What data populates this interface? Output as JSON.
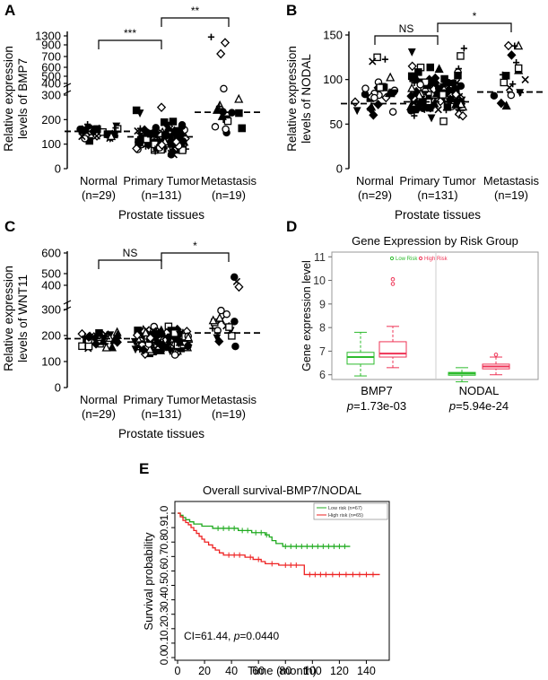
{
  "chart_data": [
    {
      "panel_label": "A",
      "type": "scatter",
      "ylabel_lines": [
        "Relative expression",
        "levels of BMP7"
      ],
      "xlabel": "Prostate tissues",
      "groups": [
        {
          "name": "Normal",
          "n": "(n=29)"
        },
        {
          "name": "Primary Tumor",
          "n": "(n=131)"
        },
        {
          "name": "Metastasis",
          "n": "(n=19)"
        }
      ],
      "y_ticks": [
        "0",
        "100",
        "200",
        "300",
        "400",
        "500",
        "600",
        "700",
        "900",
        "1300"
      ],
      "ylim": [
        0,
        1300
      ],
      "y_break": [
        300,
        400
      ],
      "means": [
        152,
        130,
        230
      ],
      "point_count": [
        29,
        131,
        19
      ],
      "point_range": [
        [
          95,
          200
        ],
        [
          40,
          250
        ],
        [
          60,
          1250
        ]
      ],
      "significance": [
        {
          "from": 0,
          "to": 1,
          "label": "***"
        },
        {
          "from": 1,
          "to": 2,
          "label": "**"
        }
      ]
    },
    {
      "panel_label": "B",
      "type": "scatter",
      "ylabel_lines": [
        "Relative expression",
        "levels of NODAL"
      ],
      "xlabel": "Prostate tissues",
      "groups": [
        {
          "name": "Normal",
          "n": "(n=29)"
        },
        {
          "name": "Primary Tumor",
          "n": "(n=131)"
        },
        {
          "name": "Metastasis",
          "n": "(n=19)"
        }
      ],
      "y_ticks": [
        "0",
        "50",
        "100",
        "150"
      ],
      "ylim": [
        0,
        150
      ],
      "means": [
        73,
        75,
        86
      ],
      "point_count": [
        29,
        131,
        19
      ],
      "point_range": [
        [
          48,
          125
        ],
        [
          45,
          135
        ],
        [
          48,
          138
        ]
      ],
      "significance": [
        {
          "from": 0,
          "to": 1,
          "label": "NS"
        },
        {
          "from": 1,
          "to": 2,
          "label": "*"
        }
      ]
    },
    {
      "panel_label": "C",
      "type": "scatter",
      "ylabel_lines": [
        "Relative expression",
        "levels of WNT11"
      ],
      "xlabel": "Prostate tissues",
      "groups": [
        {
          "name": "Normal",
          "n": "(n=29)"
        },
        {
          "name": "Primary Tumor",
          "n": "(n=131)"
        },
        {
          "name": "Metastasis",
          "n": "(n=19)"
        }
      ],
      "y_ticks": [
        "0",
        "100",
        "200",
        "300",
        "400",
        "500",
        "600"
      ],
      "ylim": [
        0,
        600
      ],
      "y_break": [
        300,
        340
      ],
      "means": [
        188,
        175,
        210
      ],
      "point_count": [
        29,
        131,
        19
      ],
      "point_range": [
        [
          130,
          240
        ],
        [
          110,
          250
        ],
        [
          140,
          470
        ]
      ],
      "significance": [
        {
          "from": 0,
          "to": 1,
          "label": "NS"
        },
        {
          "from": 1,
          "to": 2,
          "label": "*"
        }
      ]
    },
    {
      "panel_label": "D",
      "type": "box",
      "title": "Gene Expression by Risk Group",
      "ylabel": "Gene expression level",
      "y_ticks": [
        "6",
        "7",
        "8",
        "9",
        "10",
        "11"
      ],
      "ylim": [
        5.8,
        11.2
      ],
      "legend": [
        {
          "name": "Low Risk",
          "color": "#2dbb2d"
        },
        {
          "name": "High Risk",
          "color": "#ee3355"
        }
      ],
      "genes": [
        {
          "name": "BMP7",
          "pvalue": "=1.73e-03",
          "p_symbol": "p",
          "low": {
            "min": 5.95,
            "q1": 6.45,
            "median": 6.75,
            "q3": 6.95,
            "max": 7.8,
            "outliers": []
          },
          "high": {
            "min": 6.3,
            "q1": 6.75,
            "median": 6.9,
            "q3": 7.4,
            "max": 8.05,
            "outliers": [
              9.85,
              10.05
            ]
          }
        },
        {
          "name": "NODAL",
          "pvalue": "=5.94e-24",
          "p_symbol": "p",
          "low": {
            "min": 5.7,
            "q1": 5.98,
            "median": 6.05,
            "q3": 6.1,
            "max": 6.3,
            "outliers": []
          },
          "high": {
            "min": 6.0,
            "q1": 6.25,
            "median": 6.35,
            "q3": 6.45,
            "max": 6.75,
            "outliers": [
              6.85
            ]
          }
        }
      ]
    },
    {
      "panel_label": "E",
      "type": "line",
      "title": "Overall survival-BMP7/NODAL",
      "xlabel": "Time (month)",
      "ylabel": "Survival probability",
      "x_ticks": [
        0,
        20,
        40,
        60,
        80,
        100,
        120,
        140
      ],
      "y_ticks": [
        "0.0",
        "0.1",
        "0.2",
        "0.3",
        "0.4",
        "0.5",
        "0.6",
        "0.7",
        "0.8",
        "0.9",
        "1.0"
      ],
      "xlim": [
        0,
        155
      ],
      "ylim": [
        0,
        1.05
      ],
      "annotation": {
        "pre": "CI=61.44, ",
        "p_symbol": "p",
        "post": "=0.0440"
      },
      "series": [
        {
          "name": "Low risk (n=67)",
          "color": "#1faa1f",
          "steps": [
            [
              0,
              1.0
            ],
            [
              2,
              0.985
            ],
            [
              4,
              0.97
            ],
            [
              6,
              0.955
            ],
            [
              9,
              0.94
            ],
            [
              12,
              0.925
            ],
            [
              18,
              0.91
            ],
            [
              26,
              0.895
            ],
            [
              45,
              0.88
            ],
            [
              55,
              0.865
            ],
            [
              65,
              0.85
            ],
            [
              68,
              0.835
            ],
            [
              70,
              0.81
            ],
            [
              73,
              0.79
            ],
            [
              78,
              0.77
            ],
            [
              128,
              0.77
            ]
          ],
          "censor_x": [
            30,
            34,
            38,
            42,
            48,
            52,
            58,
            62,
            66,
            80,
            84,
            88,
            92,
            96,
            100,
            104,
            108,
            112,
            116,
            120,
            124
          ]
        },
        {
          "name": "High risk (n=65)",
          "color": "#ee2222",
          "steps": [
            [
              0,
              1.0
            ],
            [
              2,
              0.975
            ],
            [
              4,
              0.95
            ],
            [
              6,
              0.935
            ],
            [
              8,
              0.92
            ],
            [
              10,
              0.9
            ],
            [
              12,
              0.88
            ],
            [
              14,
              0.86
            ],
            [
              16,
              0.84
            ],
            [
              18,
              0.82
            ],
            [
              20,
              0.8
            ],
            [
              23,
              0.78
            ],
            [
              26,
              0.76
            ],
            [
              28,
              0.745
            ],
            [
              31,
              0.725
            ],
            [
              34,
              0.71
            ],
            [
              50,
              0.695
            ],
            [
              56,
              0.68
            ],
            [
              62,
              0.665
            ],
            [
              65,
              0.65
            ],
            [
              75,
              0.64
            ],
            [
              94,
              0.575
            ],
            [
              150,
              0.575
            ]
          ],
          "censor_x": [
            38,
            42,
            46,
            54,
            60,
            70,
            80,
            84,
            88,
            98,
            102,
            106,
            110,
            115,
            120,
            125,
            130,
            135,
            140,
            145
          ]
        }
      ]
    }
  ]
}
